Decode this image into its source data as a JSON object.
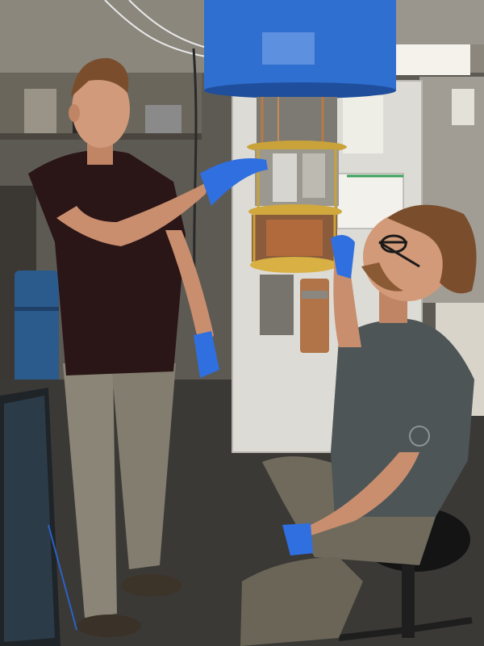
{
  "photo": {
    "subjects": [
      "standing-researcher",
      "seated-researcher",
      "cryostat-apparatus"
    ],
    "colors": {
      "floor": "#3b3936",
      "wall": "#6d6a63",
      "cabinet": "#d9d8d2",
      "blue_can": "#2f6fcf",
      "gold": "#c9a23a",
      "copper": "#b06a3c",
      "glove": "#2f6fe0",
      "skin": "#c98e6e",
      "maroon_shirt": "#2a1517",
      "khaki": "#8a8576",
      "gray_shirt": "#4d5557",
      "olive_pants": "#6f6a5c",
      "hair": "#7a4e2c",
      "stool": "#141414"
    }
  }
}
